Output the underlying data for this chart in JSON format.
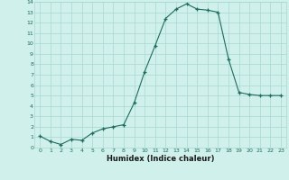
{
  "x": [
    0,
    1,
    2,
    3,
    4,
    5,
    6,
    7,
    8,
    9,
    10,
    11,
    12,
    13,
    14,
    15,
    16,
    17,
    18,
    19,
    20,
    21,
    22,
    23
  ],
  "y": [
    1.1,
    0.6,
    0.3,
    0.8,
    0.7,
    1.4,
    1.8,
    2.0,
    2.2,
    4.3,
    7.3,
    9.8,
    12.4,
    13.3,
    13.8,
    13.3,
    13.2,
    13.0,
    8.5,
    5.3,
    5.1,
    5.0,
    5.0,
    5.0
  ],
  "xlabel": "Humidex (Indice chaleur)",
  "xlim": [
    -0.5,
    23.5
  ],
  "ylim": [
    0,
    14
  ],
  "bg_color": "#cff0eb",
  "line_color": "#1f6b5e",
  "grid_color": "#a8d8d0",
  "tick_color": "#1f6b5e",
  "xlabel_color": "#1a1a1a",
  "yticks": [
    0,
    1,
    2,
    3,
    4,
    5,
    6,
    7,
    8,
    9,
    10,
    11,
    12,
    13,
    14
  ],
  "xticks": [
    0,
    1,
    2,
    3,
    4,
    5,
    6,
    7,
    8,
    9,
    10,
    11,
    12,
    13,
    14,
    15,
    16,
    17,
    18,
    19,
    20,
    21,
    22,
    23
  ]
}
